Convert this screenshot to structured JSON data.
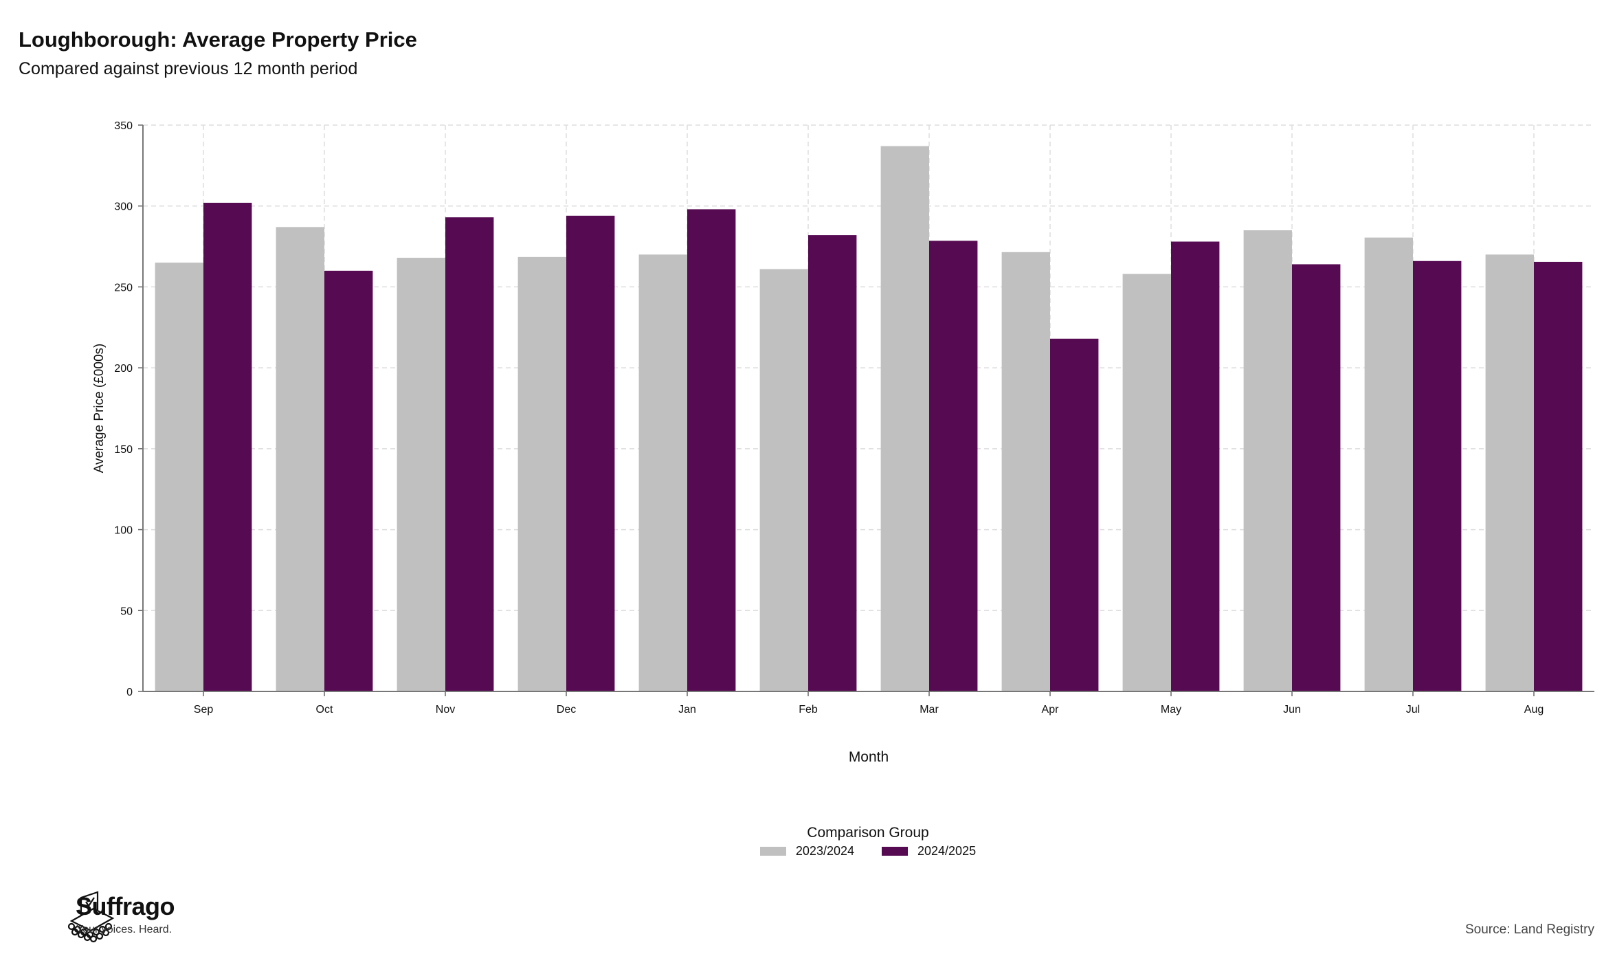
{
  "header": {
    "title": "Loughborough: Average Property Price",
    "subtitle": "Compared against previous 12 month period"
  },
  "chart_data": {
    "type": "bar",
    "xlabel": "Month",
    "ylabel": "Average Price (£000s)",
    "ylim": [
      0,
      350
    ],
    "yticks": [
      0,
      50,
      100,
      150,
      200,
      250,
      300,
      350
    ],
    "grid": true,
    "legend_position": "bottom",
    "legend_title": "Comparison Group",
    "categories": [
      "Sep",
      "Oct",
      "Nov",
      "Dec",
      "Jan",
      "Feb",
      "Mar",
      "Apr",
      "May",
      "Jun",
      "Jul",
      "Aug"
    ],
    "series": [
      {
        "name": "2023/2024",
        "color": "#c0c0c0",
        "values": [
          265,
          287,
          268,
          268.5,
          270,
          261,
          337,
          271.5,
          258,
          285,
          280.5,
          270
        ]
      },
      {
        "name": "2024/2025",
        "color": "#560a52",
        "values": [
          302,
          260,
          293,
          294,
          298,
          282,
          278.5,
          218,
          278,
          264,
          266,
          265.5
        ]
      }
    ]
  },
  "footer": {
    "brand_name": "Suffrago",
    "brand_tagline": "Your voices. Heard.",
    "logo_icon": "ballot-box-icon",
    "source": "Source: Land Registry"
  }
}
